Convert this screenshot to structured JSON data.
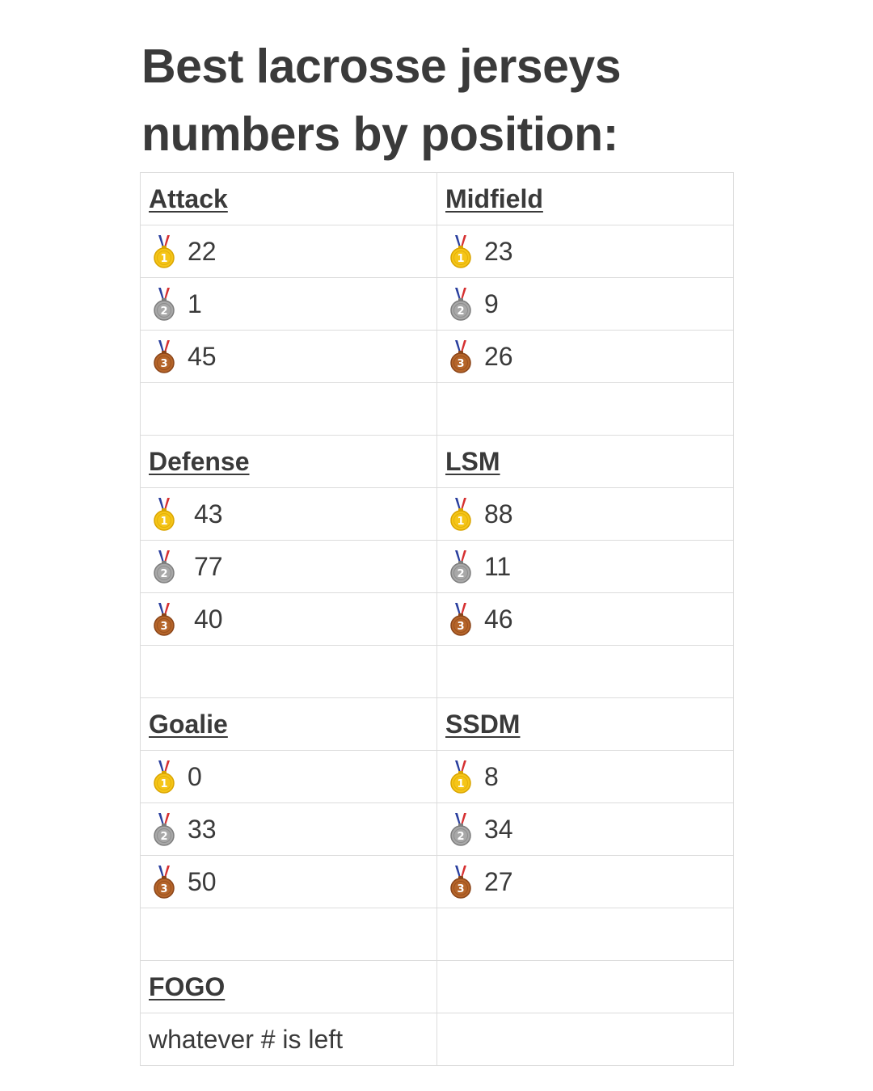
{
  "title_line1": "Best lacrosse jerseys",
  "title_line2": "numbers by position:",
  "medal_colors": {
    "gold": "#f5c518",
    "silver": "#a8a8a8",
    "bronze": "#b5652a",
    "ribbon_blue": "#2a3f9e",
    "ribbon_red": "#d63031"
  },
  "positions": {
    "attack": {
      "label": "Attack",
      "first": "22",
      "second": "1",
      "third": "45"
    },
    "midfield": {
      "label": "Midfield",
      "first": "23",
      "second": "9",
      "third": "26"
    },
    "defense": {
      "label": "Defense",
      "first": "43",
      "second": "77",
      "third": "40"
    },
    "lsm": {
      "label": "LSM",
      "first": "88",
      "second": "11",
      "third": "46"
    },
    "goalie": {
      "label": "Goalie",
      "first": "0",
      "second": "33",
      "third": "50"
    },
    "ssdm": {
      "label": "SSDM",
      "first": "8",
      "second": "34",
      "third": "27"
    },
    "fogo": {
      "label": "FOGO",
      "note": "whatever # is left"
    }
  },
  "medal_icons": {
    "first": "1st-place-medal-icon",
    "second": "2nd-place-medal-icon",
    "third": "3rd-place-medal-icon"
  }
}
